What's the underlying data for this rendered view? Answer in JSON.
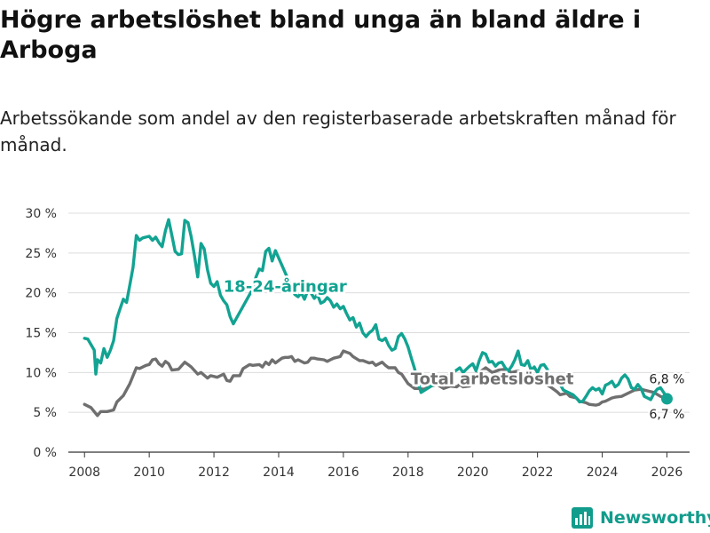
{
  "title": "Högre arbetslöshet bland unga än bland äldre i Arboga",
  "subtitle": "Arbetssökande som andel av den registerbaserade arbetskraften månad för månad.",
  "brand": {
    "name": "Newsworthy",
    "icon": "newsworthy-bar-chart-icon"
  },
  "colors": {
    "youth": "#12a392",
    "total": "#6f6f6f",
    "grid": "#dcdcdc",
    "axis": "#333333"
  },
  "chart_data": {
    "type": "line",
    "xlim": [
      2007.5,
      2026.7
    ],
    "ylim": [
      0,
      30
    ],
    "x_ticks": [
      2008,
      2010,
      2012,
      2014,
      2016,
      2018,
      2020,
      2022,
      2024,
      2026
    ],
    "x_tick_labels": [
      "2008",
      "2010",
      "2012",
      "2014",
      "2016",
      "2018",
      "2020",
      "2022",
      "2024",
      "2026"
    ],
    "y_ticks": [
      0,
      5,
      10,
      15,
      20,
      25,
      30
    ],
    "y_tick_labels": [
      "0 %",
      "5 %",
      "10 %",
      "15 %",
      "20 %",
      "25 %",
      "30 %"
    ],
    "grid": true,
    "series": [
      {
        "name": "18-24-åringar",
        "label": "18-24-åringar",
        "color": "#12a392",
        "x": [
          2008.0,
          2008.1,
          2008.2,
          2008.3,
          2008.35,
          2008.4,
          2008.5,
          2008.6,
          2008.7,
          2008.8,
          2008.9,
          2009.0,
          2009.1,
          2009.2,
          2009.3,
          2009.4,
          2009.5,
          2009.6,
          2009.7,
          2009.8,
          2009.9,
          2010.0,
          2010.1,
          2010.2,
          2010.3,
          2010.4,
          2010.5,
          2010.6,
          2010.7,
          2010.8,
          2010.9,
          2011.0,
          2011.1,
          2011.2,
          2011.3,
          2011.4,
          2011.5,
          2011.6,
          2011.7,
          2011.8,
          2011.9,
          2012.0,
          2012.1,
          2012.2,
          2012.3,
          2012.4,
          2012.5,
          2012.6,
          2013.2,
          2013.3,
          2013.4,
          2013.5,
          2013.6,
          2013.7,
          2013.8,
          2013.9,
          2014.5,
          2014.6,
          2014.7,
          2014.8,
          2014.9,
          2015.0,
          2015.1,
          2015.2,
          2015.3,
          2015.4,
          2015.5,
          2015.6,
          2015.7,
          2015.8,
          2015.9,
          2016.0,
          2016.1,
          2016.2,
          2016.3,
          2016.4,
          2016.5,
          2016.6,
          2016.7,
          2016.8,
          2016.9,
          2017.0,
          2017.1,
          2017.2,
          2017.3,
          2017.4,
          2017.5,
          2017.6,
          2017.7,
          2017.8,
          2017.9,
          2018.0,
          2018.1,
          2018.2,
          2018.3,
          2018.4,
          2019.5,
          2019.6,
          2019.7,
          2019.8,
          2019.9,
          2020.0,
          2020.1,
          2020.2,
          2020.3,
          2020.4,
          2020.5,
          2020.6,
          2020.7,
          2020.8,
          2020.9,
          2021.0,
          2021.1,
          2021.2,
          2021.3,
          2021.4,
          2021.5,
          2021.6,
          2021.7,
          2021.8,
          2021.9,
          2022.0,
          2022.1,
          2022.2,
          2022.3,
          2022.4,
          2022.5,
          2022.6,
          2022.7,
          2022.8,
          2022.9,
          2023.0,
          2023.1,
          2023.2,
          2023.3,
          2023.4,
          2023.5,
          2023.6,
          2023.7,
          2023.8,
          2023.9,
          2024.0,
          2024.1,
          2024.2,
          2024.3,
          2024.4,
          2024.5,
          2024.6,
          2024.7,
          2024.8,
          2024.9,
          2025.0,
          2025.1,
          2025.2,
          2025.3,
          2025.4,
          2025.5,
          2025.6,
          2025.7,
          2025.8,
          2025.9,
          2026.0
        ],
        "values": [
          14.3,
          14.2,
          13.5,
          12.8,
          9.8,
          11.6,
          11.2,
          13.0,
          11.9,
          12.8,
          14.0,
          16.8,
          18.0,
          19.2,
          18.8,
          21.0,
          23.2,
          27.2,
          26.6,
          26.9,
          27.0,
          27.1,
          26.6,
          27.0,
          26.3,
          25.8,
          27.8,
          29.2,
          27.2,
          25.2,
          24.8,
          24.9,
          29.1,
          28.8,
          27.0,
          24.6,
          22.0,
          26.2,
          25.5,
          22.9,
          21.2,
          20.8,
          21.4,
          19.7,
          19.0,
          18.5,
          17.0,
          16.1,
          20.5,
          22.0,
          23.0,
          22.8,
          25.2,
          25.6,
          24.0,
          25.3,
          19.8,
          19.5,
          20.0,
          19.2,
          20.3,
          20.0,
          19.3,
          19.8,
          18.7,
          18.9,
          19.4,
          19.0,
          18.2,
          18.6,
          18.0,
          18.3,
          17.4,
          16.6,
          16.9,
          15.7,
          16.2,
          15.0,
          14.5,
          15.0,
          15.3,
          16.0,
          14.2,
          14.0,
          14.3,
          13.4,
          12.8,
          13.0,
          14.5,
          14.9,
          14.2,
          13.2,
          11.8,
          10.5,
          9.0,
          7.5,
          10.3,
          10.6,
          10.0,
          10.4,
          10.8,
          11.1,
          10.2,
          11.5,
          12.5,
          12.3,
          11.3,
          11.4,
          10.8,
          11.2,
          11.3,
          10.6,
          10.2,
          10.8,
          11.6,
          12.7,
          11.0,
          10.9,
          11.5,
          10.3,
          10.7,
          10.0,
          10.9,
          11.0,
          10.4,
          9.5,
          8.9,
          9.4,
          8.5,
          7.8,
          7.6,
          7.4,
          7.2,
          6.8,
          6.3,
          6.4,
          7.0,
          7.7,
          8.1,
          7.8,
          8.0,
          7.3,
          8.4,
          8.6,
          8.9,
          8.2,
          8.5,
          9.3,
          9.7,
          9.2,
          8.1,
          7.9,
          8.5,
          8.0,
          7.0,
          6.8,
          6.6,
          7.4,
          7.9,
          8.1,
          7.5,
          6.8
        ]
      },
      {
        "name": "Total arbetslöshet",
        "label": "Total arbetslöshet",
        "color": "#6f6f6f",
        "x": [
          2008.0,
          2008.2,
          2008.4,
          2008.5,
          2008.7,
          2008.9,
          2009.0,
          2009.2,
          2009.4,
          2009.6,
          2009.7,
          2009.9,
          2010.0,
          2010.1,
          2010.2,
          2010.3,
          2010.4,
          2010.5,
          2010.6,
          2010.7,
          2010.9,
          2011.1,
          2011.2,
          2011.3,
          2011.5,
          2011.6,
          2011.8,
          2011.9,
          2012.1,
          2012.2,
          2012.3,
          2012.4,
          2012.5,
          2012.6,
          2012.8,
          2012.9,
          2013.1,
          2013.2,
          2013.4,
          2013.5,
          2013.6,
          2013.7,
          2013.8,
          2013.9,
          2014.1,
          2014.2,
          2014.3,
          2014.4,
          2014.5,
          2014.6,
          2014.8,
          2014.9,
          2015.0,
          2015.1,
          2015.2,
          2015.4,
          2015.5,
          2015.6,
          2015.7,
          2015.9,
          2016.0,
          2016.2,
          2016.3,
          2016.5,
          2016.6,
          2016.8,
          2016.9,
          2017.0,
          2017.2,
          2017.3,
          2017.4,
          2017.6,
          2017.7,
          2017.8,
          2018.0,
          2018.2,
          2018.3,
          2018.5,
          2018.7,
          2018.9,
          2019.1,
          2019.3,
          2019.5,
          2019.6,
          2019.7,
          2019.9,
          2020.0,
          2020.2,
          2020.4,
          2020.6,
          2020.8,
          2021.0,
          2021.2,
          2021.4,
          2021.6,
          2021.8,
          2022.0,
          2022.2,
          2022.4,
          2022.6,
          2022.7,
          2022.9,
          2023.0,
          2023.2,
          2023.3,
          2023.5,
          2023.6,
          2023.8,
          2023.9,
          2024.0,
          2024.1,
          2024.3,
          2024.4,
          2024.6,
          2024.8,
          2025.0,
          2025.2,
          2025.4,
          2025.6,
          2025.8,
          2026.0
        ],
        "values": [
          6.0,
          5.6,
          4.6,
          5.1,
          5.1,
          5.3,
          6.3,
          7.1,
          8.6,
          10.6,
          10.5,
          10.9,
          11.0,
          11.6,
          11.7,
          11.1,
          10.8,
          11.4,
          11.1,
          10.3,
          10.4,
          11.3,
          11.0,
          10.7,
          9.8,
          10.0,
          9.3,
          9.6,
          9.4,
          9.6,
          9.8,
          9.0,
          8.9,
          9.6,
          9.6,
          10.5,
          11.0,
          10.9,
          11.0,
          10.7,
          11.3,
          11.0,
          11.6,
          11.2,
          11.8,
          11.9,
          11.9,
          12.0,
          11.4,
          11.6,
          11.2,
          11.3,
          11.8,
          11.8,
          11.7,
          11.6,
          11.4,
          11.6,
          11.8,
          12.0,
          12.7,
          12.4,
          12.0,
          11.5,
          11.5,
          11.2,
          11.3,
          10.9,
          11.3,
          10.9,
          10.6,
          10.6,
          10.0,
          9.8,
          8.6,
          8.0,
          8.0,
          7.9,
          8.3,
          8.5,
          8.0,
          8.3,
          8.2,
          8.5,
          8.2,
          8.3,
          9.2,
          10.0,
          10.6,
          10.0,
          10.3,
          10.4,
          10.0,
          10.2,
          9.9,
          9.7,
          9.3,
          8.7,
          8.2,
          7.6,
          7.2,
          7.4,
          7.0,
          6.8,
          6.4,
          6.2,
          6.0,
          5.9,
          6.0,
          6.3,
          6.4,
          6.8,
          6.9,
          7.0,
          7.4,
          7.8,
          7.9,
          7.7,
          7.5,
          7.0,
          6.7
        ]
      }
    ],
    "annotations": [
      {
        "text": "18-24-åringar",
        "x": 2014.2,
        "y": 20.9,
        "series": 0
      },
      {
        "text": "Total arbetslöshet",
        "x": 2020.6,
        "y": 9.3,
        "series": 1
      },
      {
        "text": "6,8 %",
        "x": 2026.0,
        "y": 9.2
      },
      {
        "text": "6,7 %",
        "x": 2026.0,
        "y": 4.8
      }
    ],
    "end_point": {
      "x": 2026.0,
      "y": 6.7
    }
  }
}
